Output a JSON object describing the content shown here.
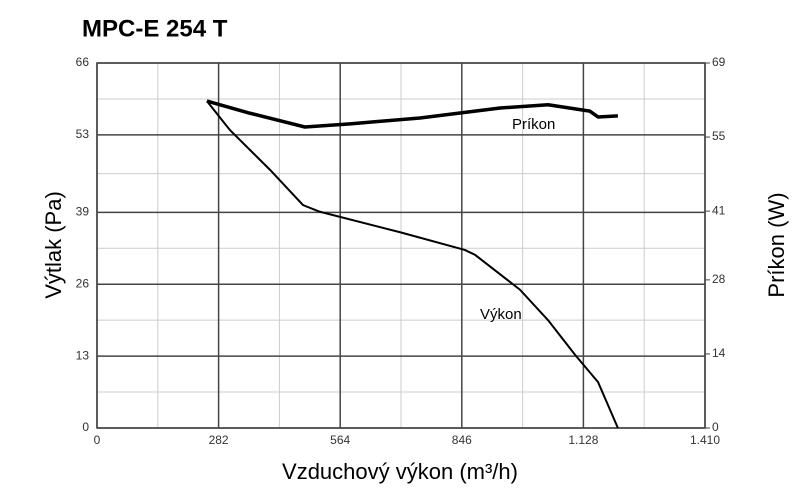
{
  "chart_data": {
    "type": "line",
    "title": "MPC-E 254 T",
    "xlabel": "Vzduchový výkon (m³/h)",
    "ylabel": "Výtlak (Pa)",
    "y2label": "Príkon (W)",
    "xlim": [
      0,
      1410
    ],
    "xticks": [
      0,
      282,
      564,
      846,
      {
        "value": 1128,
        "label": "1.128"
      },
      {
        "value": 1410,
        "label": "1.410"
      }
    ],
    "ylim": [
      0,
      66
    ],
    "yticks": [
      0,
      13,
      26,
      39,
      53,
      66
    ],
    "y2lim": [
      0,
      69
    ],
    "y2ticks": [
      0,
      14,
      28,
      41,
      55,
      69
    ],
    "grid": true,
    "series": [
      {
        "name": "Výkon",
        "color": "#000000",
        "x": [
          255,
          308,
          401,
          478,
          517,
          703,
          853,
          877,
          981,
          1046,
          1109,
          1162,
          1208
        ],
        "values": [
          59.1,
          53.9,
          46.7,
          40.3,
          39.1,
          35.4,
          32.2,
          31.3,
          25,
          19.5,
          13.2,
          8.3,
          0
        ]
      },
      {
        "name": "Príkon",
        "color": "#000000",
        "axis": "y2",
        "x": [
          255,
          355,
          482,
          587,
          749,
          935,
          1046,
          1143,
          1162,
          1208
        ],
        "values": [
          61.8,
          59.5,
          56.9,
          57.5,
          58.6,
          60.5,
          61.1,
          59.9,
          58.8,
          59
        ]
      }
    ]
  }
}
